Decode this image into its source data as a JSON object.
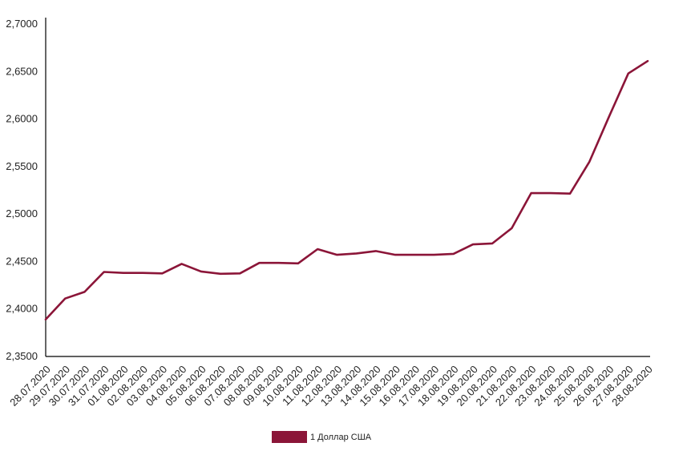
{
  "chart_data": {
    "type": "line",
    "title": "",
    "xlabel": "",
    "ylabel": "",
    "categories": [
      "28.07.2020",
      "29.07.2020",
      "30.07.2020",
      "31.07.2020",
      "01.08.2020",
      "02.08.2020",
      "03.08.2020",
      "04.08.2020",
      "05.08.2020",
      "06.08.2020",
      "07.08.2020",
      "08.08.2020",
      "09.08.2020",
      "10.08.2020",
      "11.08.2020",
      "12.08.2020",
      "13.08.2020",
      "14.08.2020",
      "15.08.2020",
      "16.08.2020",
      "17.08.2020",
      "18.08.2020",
      "19.08.2020",
      "20.08.2020",
      "21.08.2020",
      "22.08.2020",
      "23.08.2020",
      "24.08.2020",
      "25.08.2020",
      "26.08.2020",
      "27.08.2020",
      "28.08.2020"
    ],
    "series": [
      {
        "name": "1 Доллар США",
        "color": "#8b1538",
        "values": [
          2.389,
          2.411,
          2.418,
          2.439,
          2.438,
          2.438,
          2.4375,
          2.4475,
          2.4395,
          2.437,
          2.4375,
          2.4485,
          2.4485,
          2.448,
          2.463,
          2.457,
          2.4585,
          2.461,
          2.457,
          2.457,
          2.457,
          2.458,
          2.468,
          2.469,
          2.485,
          2.522,
          2.522,
          2.5215,
          2.555,
          2.602,
          2.648,
          2.661
        ]
      }
    ],
    "yticks": [
      "2,3500",
      "2,4000",
      "2,4500",
      "2,5000",
      "2,5500",
      "2,6000",
      "2,6500",
      "2,7000"
    ],
    "ylim": [
      2.35,
      2.7
    ],
    "grid": false,
    "legend_position": "bottom"
  }
}
